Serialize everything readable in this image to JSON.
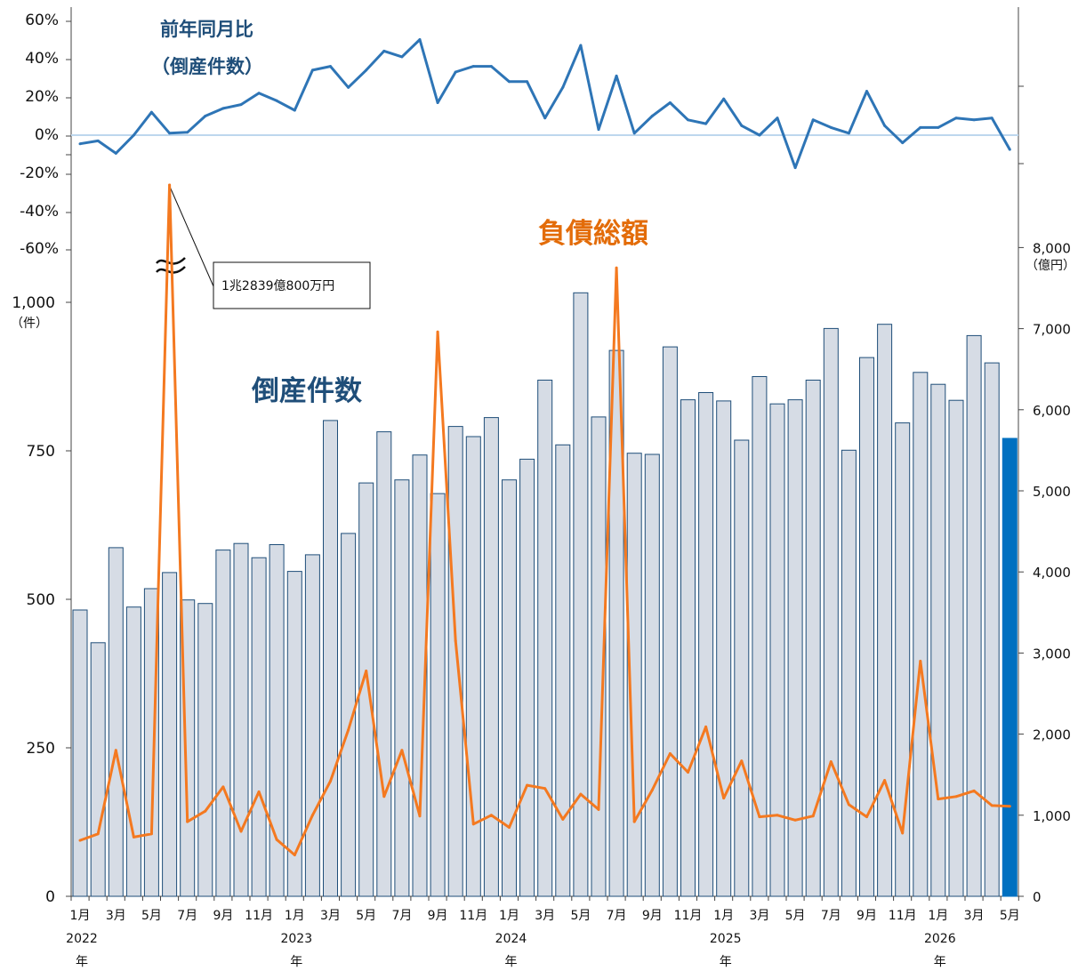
{
  "chart_data": {
    "type": "bar+line",
    "x": [
      "2022-01",
      "2022-02",
      "2022-03",
      "2022-04",
      "2022-05",
      "2022-06",
      "2022-07",
      "2022-08",
      "2022-09",
      "2022-10",
      "2022-11",
      "2022-12",
      "2023-01",
      "2023-02",
      "2023-03",
      "2023-04",
      "2023-05",
      "2023-06",
      "2023-07",
      "2023-08",
      "2023-09",
      "2023-10",
      "2023-11",
      "2023-12",
      "2024-01",
      "2024-02",
      "2024-03",
      "2024-04",
      "2024-05",
      "2024-06",
      "2024-07",
      "2024-08",
      "2024-09",
      "2024-10",
      "2024-11",
      "2024-12",
      "2025-01",
      "2025-02",
      "2025-03",
      "2025-04",
      "2025-05",
      "2025-06",
      "2025-07",
      "2025-08",
      "2025-09",
      "2025-10",
      "2025-11",
      "2025-12",
      "2026-01",
      "2026-02",
      "2026-03",
      "2026-04",
      "2026-05"
    ],
    "x_tick_labels": [
      "1月",
      "3月",
      "5月",
      "7月",
      "9月",
      "11月",
      "1月",
      "3月",
      "5月",
      "7月",
      "9月",
      "11月",
      "1月",
      "3月",
      "5月",
      "7月",
      "9月",
      "11月",
      "1月",
      "3月",
      "5月",
      "7月",
      "9月",
      "11月",
      "1月",
      "3月",
      "5月"
    ],
    "year_labels": [
      "2022",
      "2023",
      "2024",
      "2025",
      "2026"
    ],
    "year_suffix": "年",
    "series": [
      {
        "name": "倒産件数",
        "kind": "bar",
        "axis": "left",
        "unit": "（件）",
        "values": [
          482,
          427,
          587,
          487,
          518,
          545,
          499,
          493,
          583,
          594,
          570,
          592,
          547,
          575,
          801,
          611,
          696,
          782,
          701,
          743,
          678,
          791,
          774,
          806,
          701,
          736,
          869,
          760,
          1016,
          807,
          919,
          746,
          744,
          925,
          836,
          848,
          834,
          768,
          875,
          829,
          836,
          869,
          956,
          751,
          907,
          963,
          797,
          882,
          862,
          835,
          944,
          898,
          771
        ]
      },
      {
        "name": "負債総額",
        "kind": "line",
        "axis": "right",
        "unit": "（億円）",
        "values": [
          690,
          770,
          1800,
          730,
          770,
          12839,
          920,
          1050,
          1350,
          800,
          1290,
          700,
          510,
          1000,
          1420,
          2050,
          2780,
          1230,
          1800,
          990,
          6960,
          3150,
          890,
          1000,
          850,
          1370,
          1330,
          950,
          1260,
          1070,
          7750,
          920,
          1310,
          1760,
          1530,
          2090,
          1210,
          1670,
          980,
          1000,
          940,
          990,
          1660,
          1130,
          980,
          1430,
          780,
          2900,
          1200,
          1230,
          1300,
          1120,
          1110
        ]
      },
      {
        "name": "前年同月比",
        "kind": "line",
        "axis": "top",
        "unit": "%",
        "values": [
          -4.5,
          -3,
          -9.5,
          0,
          12,
          1,
          1.5,
          10,
          14,
          16,
          22,
          18,
          13,
          34,
          36,
          25,
          34,
          44,
          41,
          50,
          17,
          33,
          36,
          36,
          28,
          28,
          9,
          25,
          47,
          3,
          31,
          1,
          10,
          17,
          8,
          6,
          19,
          5,
          0,
          9,
          -17,
          8,
          4,
          1,
          23,
          5,
          -4,
          4,
          4,
          9,
          8,
          9,
          -7.5
        ]
      }
    ],
    "left_axis": {
      "ylim": [
        0,
        1016
      ],
      "ticks": [
        "0",
        "250",
        "500",
        "750",
        "1,000"
      ],
      "unit": "（件）"
    },
    "right_axis": {
      "ylim": [
        0,
        8000
      ],
      "ticks": [
        "0",
        "1,000",
        "2,000",
        "3,000",
        "4,000",
        "5,000",
        "6,000",
        "7,000",
        "8,000"
      ],
      "unit": "（億円）"
    },
    "top_axis": {
      "ylim": [
        -20,
        60
      ],
      "ticks": [
        "60%",
        "40%",
        "20%",
        "0%",
        "-20%",
        "-40%",
        "-60%"
      ]
    },
    "titles": {
      "yoy_line1": "前年同月比",
      "yoy_line2": "（倒産件数）",
      "count": "倒産件数",
      "debt": "負債総額"
    },
    "annotation": "1兆2839億800万円",
    "colors": {
      "bar": "#d6dce5",
      "bar_edge": "#1f4e79",
      "bar_highlight": "#0070c0",
      "debt_line": "#f47920",
      "yoy_line": "#2e75b6",
      "title_blue": "#1f4e79",
      "title_orange": "#e36c09"
    }
  }
}
